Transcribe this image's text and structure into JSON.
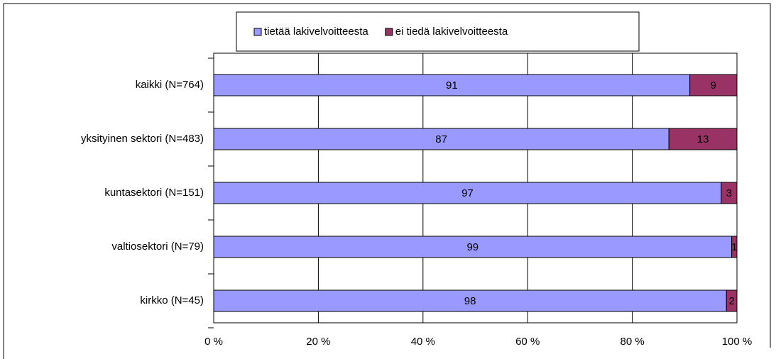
{
  "chart_data": {
    "type": "stacked_bar_horizontal",
    "categories": [
      "kaikki (N=764)",
      "yksityinen sektori (N=483)",
      "kuntasektori (N=151)",
      "valtiosektori (N=79)",
      "kirkko (N=45)"
    ],
    "series": [
      {
        "name": "tietää lakivelvoitteesta",
        "color": "#9999ff",
        "values": [
          91,
          87,
          97,
          99,
          98
        ]
      },
      {
        "name": "ei tiedä lakivelvoitteesta",
        "color": "#993366",
        "values": [
          9,
          13,
          3,
          1,
          2
        ]
      }
    ],
    "xlim": [
      0,
      100
    ],
    "xticks": [
      {
        "value": 0,
        "label": "0 %"
      },
      {
        "value": 20,
        "label": "20 %"
      },
      {
        "value": 40,
        "label": "40 %"
      },
      {
        "value": 60,
        "label": "60 %"
      },
      {
        "value": 80,
        "label": "80 %"
      },
      {
        "value": 100,
        "label": "100 %"
      }
    ],
    "grid": true,
    "legend": "top"
  }
}
